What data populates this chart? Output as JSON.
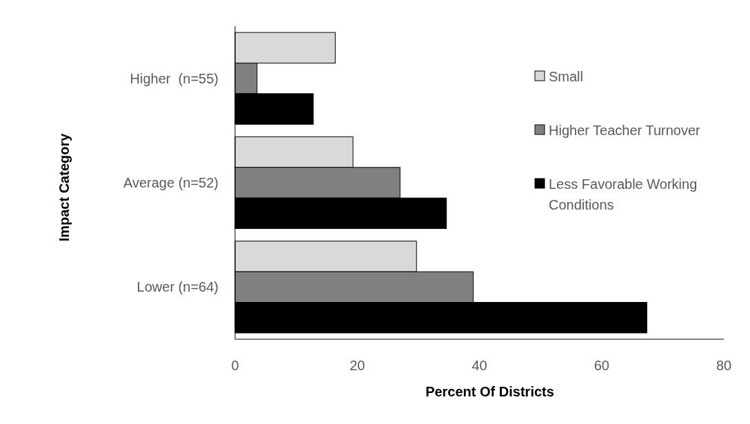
{
  "chart_data": {
    "type": "bar",
    "orientation": "horizontal",
    "xlabel": "Percent Of Districts",
    "ylabel": "Impact Category",
    "categories": [
      "Higher  (n=55)",
      "Average (n=52)",
      "Lower (n=64)"
    ],
    "series": [
      {
        "name": "Small",
        "color": "#d9d9d9",
        "values": [
          16.4,
          19.3,
          29.7
        ]
      },
      {
        "name": "Higher Teacher Turnover",
        "color": "#808080",
        "values": [
          3.6,
          27.0,
          39.0
        ]
      },
      {
        "name": "Less Favorable Working Conditions",
        "color": "#000000",
        "values": [
          12.8,
          34.6,
          67.4
        ]
      }
    ],
    "xlim": [
      0,
      80
    ],
    "xticks": [
      0,
      20,
      40,
      60,
      80
    ],
    "grid": false,
    "legend": "right"
  }
}
